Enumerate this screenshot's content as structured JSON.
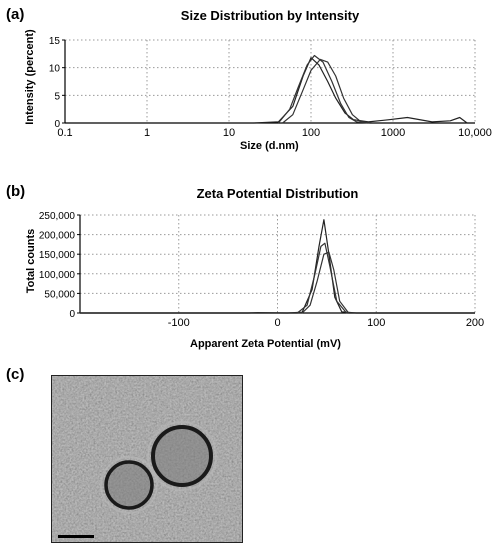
{
  "panels": {
    "a": "(a)",
    "b": "(b)",
    "c": "(c)"
  },
  "chart_data": [
    {
      "type": "line",
      "title": "Size Distribution by Intensity",
      "xlabel": "Size (d.nm)",
      "ylabel": "Intensity (percent)",
      "xscale": "log",
      "xlim": [
        0.1,
        10000
      ],
      "ylim": [
        0,
        15
      ],
      "xticks": [
        0.1,
        1,
        10,
        100,
        1000,
        10000
      ],
      "xtick_labels": [
        "0.1",
        "1",
        "10",
        "100",
        "1000",
        "10,000"
      ],
      "yticks": [
        0,
        5,
        10,
        15
      ],
      "ytick_labels": [
        "0",
        "5",
        "10",
        "15"
      ],
      "grid": true,
      "series": [
        {
          "x": [
            20,
            40,
            60,
            80,
            100,
            125,
            160,
            200,
            260,
            330,
            500,
            900,
            1500,
            3000,
            5000,
            6500,
            8000
          ],
          "y": [
            0,
            0.2,
            3,
            8.5,
            11.8,
            10.5,
            7.5,
            4.5,
            1.8,
            0.6,
            0.2,
            0.6,
            1.0,
            0.2,
            0.4,
            1.0,
            0
          ]
        },
        {
          "x": [
            40,
            55,
            70,
            90,
            110,
            140,
            180,
            230,
            290,
            360,
            500
          ],
          "y": [
            0,
            2.5,
            6.5,
            10.5,
            12.2,
            11.0,
            7.5,
            3.5,
            1.0,
            0.2,
            0
          ]
        },
        {
          "x": [
            45,
            60,
            80,
            100,
            130,
            160,
            200,
            250,
            320,
            400,
            520
          ],
          "y": [
            0,
            1.5,
            6.0,
            9.5,
            11.5,
            11.0,
            8.5,
            4.5,
            1.5,
            0.3,
            0
          ]
        }
      ]
    },
    {
      "type": "line",
      "title": "Zeta Potential Distribution",
      "xlabel": "Apparent Zeta Potential (mV)",
      "ylabel": "Total counts",
      "xlim": [
        -200,
        200
      ],
      "ylim": [
        0,
        250000
      ],
      "xticks": [
        -100,
        0,
        100,
        200
      ],
      "xtick_labels": [
        "-100",
        "0",
        "100",
        "200"
      ],
      "yticks": [
        0,
        50000,
        100000,
        150000,
        200000,
        250000
      ],
      "ytick_labels": [
        "0",
        "50,000",
        "100,000",
        "150,000",
        "200,000",
        "250,000"
      ],
      "grid": true,
      "series": [
        {
          "x": [
            -200,
            -30,
            -20,
            10,
            25,
            35,
            42,
            47,
            52,
            58,
            65,
            80,
            200
          ],
          "y": [
            0,
            0,
            1000,
            0,
            2000,
            60000,
            170000,
            238000,
            150000,
            40000,
            3000,
            0,
            0
          ]
        },
        {
          "x": [
            -200,
            20,
            30,
            38,
            44,
            48,
            53,
            60,
            70,
            200
          ],
          "y": [
            0,
            0,
            20000,
            100000,
            170000,
            178000,
            120000,
            30000,
            0,
            0
          ]
        },
        {
          "x": [
            -200,
            25,
            33,
            40,
            47,
            52,
            57,
            63,
            72,
            200
          ],
          "y": [
            0,
            0,
            20000,
            80000,
            150000,
            155000,
            110000,
            30000,
            0,
            0
          ]
        }
      ]
    }
  ],
  "micrograph": {
    "description_icon": "tem-micrograph-image",
    "scale_bar": "scale-bar-icon"
  }
}
